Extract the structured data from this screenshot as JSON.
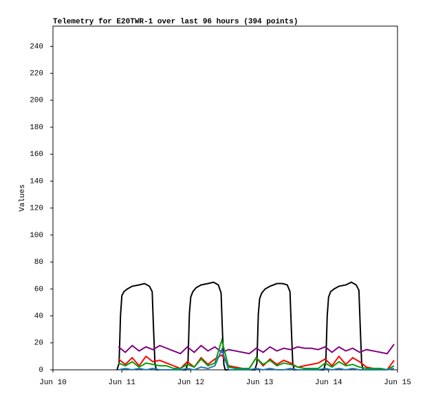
{
  "chart_data": {
    "type": "line",
    "title": "Telemetry for E20TWR-1 over last 96 hours (394 points)",
    "ylabel": "Values",
    "xlim": [
      10,
      15
    ],
    "xticks": [
      {
        "value": 10,
        "label": "Jun 10"
      },
      {
        "value": 11,
        "label": "Jun 11"
      },
      {
        "value": 12,
        "label": "Jun 12"
      },
      {
        "value": 13,
        "label": "Jun 13"
      },
      {
        "value": 14,
        "label": "Jun 14"
      },
      {
        "value": 15,
        "label": "Jun 15"
      }
    ],
    "ylim": [
      0,
      255
    ],
    "yticks": [
      0,
      20,
      40,
      60,
      80,
      100,
      120,
      140,
      160,
      180,
      200,
      220,
      240
    ],
    "grid": false,
    "series": [
      {
        "color": "#000000",
        "x": [
          10.93,
          10.96,
          10.98,
          11,
          11.03,
          11.08,
          11.15,
          11.25,
          11.33,
          11.4,
          11.44,
          11.46,
          11.48,
          11.5,
          11.93,
          11.96,
          11.98,
          12,
          12.03,
          12.08,
          12.15,
          12.25,
          12.33,
          12.4,
          12.44,
          12.46,
          12.48,
          12.5,
          12.93,
          12.96,
          12.98,
          13,
          13.03,
          13.08,
          13.15,
          13.25,
          13.33,
          13.4,
          13.44,
          13.46,
          13.48,
          13.5,
          13.93,
          13.96,
          13.98,
          14,
          14.03,
          14.08,
          14.15,
          14.25,
          14.33,
          14.4,
          14.44,
          14.46,
          14.48,
          14.5
        ],
        "values": [
          0,
          5,
          40,
          55,
          58,
          60,
          62,
          63,
          64,
          62,
          58,
          30,
          5,
          0,
          0,
          6,
          42,
          54,
          58,
          61,
          63,
          64,
          65,
          63,
          57,
          28,
          4,
          0,
          0,
          5,
          41,
          53,
          57,
          60,
          62,
          64,
          64,
          63,
          58,
          30,
          5,
          0,
          0,
          6,
          40,
          54,
          58,
          60,
          62,
          63,
          65,
          63,
          59,
          31,
          5,
          0
        ]
      },
      {
        "color": "#800080",
        "x": [
          10.95,
          11.05,
          11.15,
          11.25,
          11.35,
          11.45,
          11.55,
          11.65,
          11.75,
          11.85,
          11.95,
          12.05,
          12.15,
          12.25,
          12.35,
          12.45,
          12.55,
          12.65,
          12.75,
          12.85,
          12.95,
          13.05,
          13.15,
          13.25,
          13.35,
          13.45,
          13.55,
          13.65,
          13.75,
          13.85,
          13.95,
          14.05,
          14.15,
          14.25,
          14.35,
          14.45,
          14.55,
          14.65,
          14.75,
          14.85,
          14.95
        ],
        "values": [
          17,
          13,
          18,
          14,
          17,
          15,
          18,
          16,
          14,
          12,
          17,
          13,
          18,
          14,
          17,
          13,
          15,
          14,
          13,
          12,
          16,
          13,
          17,
          14,
          16,
          15,
          17,
          16,
          16,
          15,
          17,
          13,
          17,
          14,
          16,
          13,
          15,
          14,
          13,
          12,
          19
        ]
      },
      {
        "color": "#ff0000",
        "x": [
          10.95,
          11.05,
          11.15,
          11.25,
          11.35,
          11.45,
          11.55,
          11.65,
          11.75,
          11.85,
          11.95,
          12.05,
          12.15,
          12.25,
          12.35,
          12.45,
          12.55,
          12.65,
          12.75,
          12.85,
          12.95,
          13.05,
          13.15,
          13.25,
          13.35,
          13.45,
          13.55,
          13.65,
          13.75,
          13.85,
          13.95,
          14.05,
          14.15,
          14.25,
          14.35,
          14.45,
          14.55,
          14.65,
          14.75,
          14.85,
          14.95
        ],
        "values": [
          8,
          4,
          9,
          3,
          10,
          6,
          7,
          5,
          3,
          1,
          6,
          2,
          9,
          4,
          8,
          11,
          3,
          2,
          1,
          1,
          9,
          3,
          8,
          4,
          7,
          5,
          2,
          3,
          4,
          5,
          8,
          3,
          10,
          4,
          9,
          6,
          2,
          1,
          1,
          0,
          7
        ]
      },
      {
        "color": "#00a000",
        "x": [
          10.95,
          11.05,
          11.15,
          11.25,
          11.35,
          11.45,
          11.55,
          11.65,
          11.75,
          11.85,
          11.95,
          12.05,
          12.15,
          12.25,
          12.35,
          12.45,
          12.55,
          12.65,
          12.75,
          12.85,
          12.95,
          13.05,
          13.15,
          13.25,
          13.35,
          13.45,
          13.55,
          13.65,
          13.75,
          13.85,
          13.95,
          14.05,
          14.15,
          14.25,
          14.35,
          14.45,
          14.55,
          14.65,
          14.75,
          14.85,
          14.95
        ],
        "values": [
          5,
          3,
          6,
          2,
          5,
          4,
          3,
          3,
          1,
          1,
          4,
          2,
          8,
          3,
          5,
          22,
          2,
          1,
          1,
          1,
          9,
          4,
          7,
          3,
          5,
          4,
          2,
          1,
          1,
          1,
          5,
          2,
          6,
          3,
          4,
          2,
          1,
          1,
          1,
          0,
          3
        ]
      },
      {
        "color": "#1f77b4",
        "x": [
          10.95,
          11.05,
          11.15,
          11.25,
          11.35,
          11.45,
          11.55,
          11.65,
          11.75,
          11.85,
          11.95,
          12.05,
          12.15,
          12.25,
          12.35,
          12.45,
          12.55,
          12.65,
          12.75,
          12.85,
          12.95,
          13.05,
          13.15,
          13.25,
          13.35,
          13.45,
          13.55,
          13.65,
          13.75,
          13.85,
          13.95,
          14.05,
          14.15,
          14.25,
          14.35,
          14.45,
          14.55,
          14.65,
          14.75,
          14.85,
          14.95
        ],
        "values": [
          0,
          1,
          0,
          1,
          0,
          1,
          0,
          0,
          0,
          0,
          1,
          0,
          2,
          1,
          3,
          15,
          0,
          0,
          0,
          0,
          1,
          0,
          1,
          0,
          0,
          1,
          0,
          0,
          0,
          0,
          1,
          0,
          1,
          0,
          1,
          0,
          0,
          0,
          0,
          0,
          1
        ]
      }
    ]
  }
}
